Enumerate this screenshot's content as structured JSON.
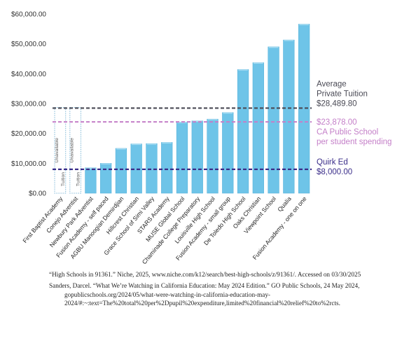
{
  "chart_data": {
    "type": "bar",
    "categories": [
      "First Baptist Academy",
      "Conejo Adventist",
      "Newbury Park Adventist",
      "Fusion Academy - self paced",
      "AGBU Manoogian Demirdjian",
      "Hillcrest Christian",
      "Grace School of Simi Valley",
      "STARS Academy",
      "MUSE Global School",
      "Chaminade College Preparatory",
      "Louisville High School",
      "Fusion Academy - small group",
      "De Toledo High School",
      "Oaks Christian",
      "Viewpoint School",
      "Qualia",
      "Fusion Academy - one on one"
    ],
    "values": [
      null,
      null,
      8500,
      10000,
      15000,
      16500,
      16600,
      17000,
      23800,
      24200,
      24800,
      27000,
      41400,
      43700,
      49000,
      51300,
      56600
    ],
    "unavailable": {
      "labels": [
        "Tuition",
        "Unavailable"
      ],
      "indices": [
        0,
        1
      ]
    },
    "ylim": [
      0,
      60000
    ],
    "yticks": [
      "$0.00",
      "$10,000.00",
      "$20,000.00",
      "$30,000.00",
      "$40,000.00",
      "$50,000.00",
      "$60,000.00"
    ],
    "ytick_values": [
      0,
      10000,
      20000,
      30000,
      40000,
      50000,
      60000
    ],
    "grid": false,
    "colors": {
      "bar": "#6ec4e8",
      "bar_edge": "#5ab4dc",
      "private": "#4a4a55",
      "public": "#c47fc8",
      "quirk": "#3b2e8a"
    },
    "reference_lines": [
      {
        "value": 28489.8,
        "label_lines": [
          "Average",
          "Private Tuition",
          "$28,489.80"
        ],
        "color": "#4a4a55"
      },
      {
        "value": 23878.0,
        "label_lines": [
          "$23,878.00",
          "CA Public School",
          "per student spending"
        ],
        "color": "#c47fc8"
      },
      {
        "value": 8000.0,
        "label_lines": [
          "Quirk Ed",
          "$8,000.00"
        ],
        "color": "#3b2e8a"
      }
    ]
  },
  "references": [
    {
      "text": "“High Schools in 91361.” Niche, 2025, www.niche.com/k12/search/best-high-schools/z/91361/. Accessed on 03/30/2025"
    },
    {
      "text": "Sanders, Darcel. “What We’re Watching in California Education: May 2024 Edition.” GO Public Schools, 24 May 2024, gopublicschools.org/2024/05/what-were-watching-in-california-education-may-2024/#:~:text=The%20total%20per%2Dpupil%20expenditure,limited%20financial%20relief%20to%2rcts."
    }
  ]
}
